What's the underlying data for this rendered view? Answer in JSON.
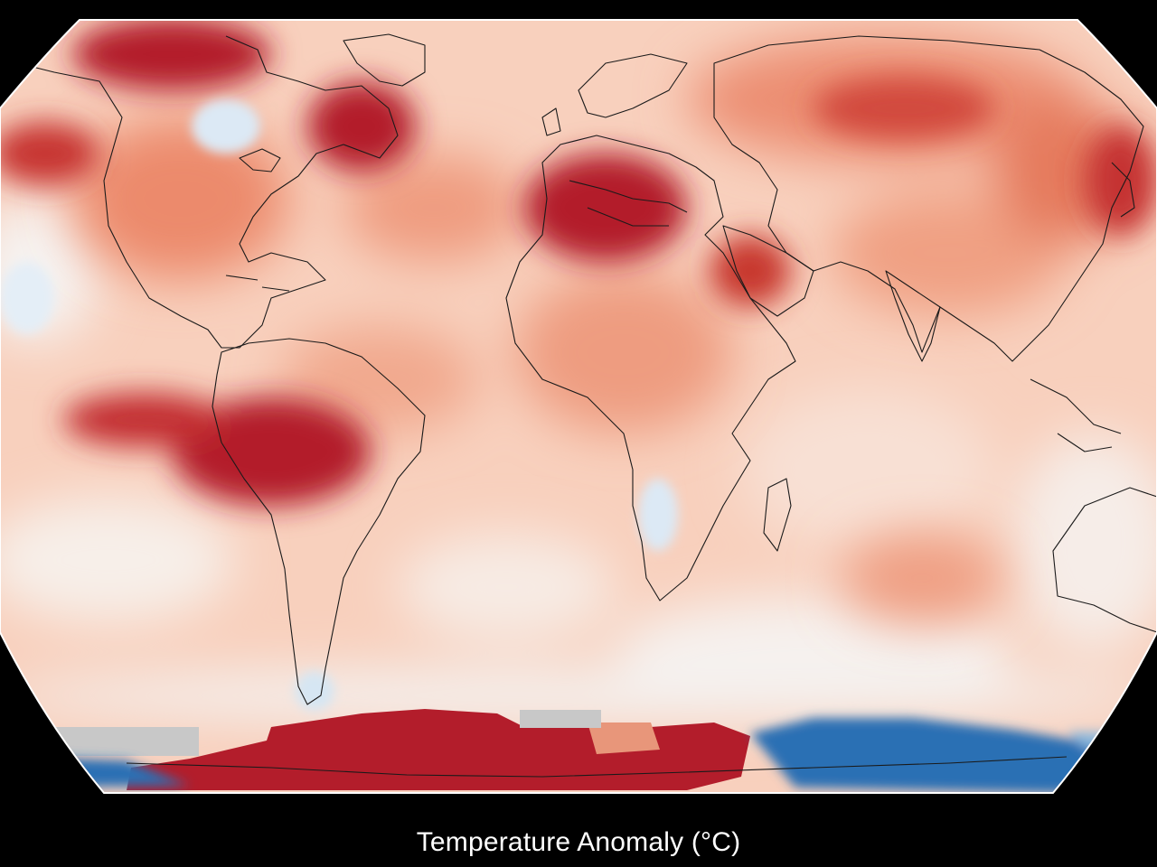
{
  "map": {
    "projection": "robinson-like",
    "variable": "surface temperature anomaly",
    "legend_caption": "Temperature Anomaly (°C)",
    "colors": {
      "background": "#000000",
      "near_zero": "#f6f3f1",
      "warm_light": "#f9c9b1",
      "warm_mid": "#ec8a6c",
      "warm_strong": "#b31d2b",
      "cool_light": "#dce9f5",
      "cool_strong": "#2a6fb4",
      "no_data": "#c8c8c8",
      "coastline": "#1a1a1a"
    }
  }
}
